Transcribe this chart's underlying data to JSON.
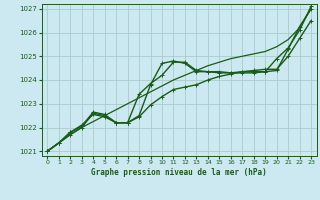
{
  "bg_color": "#cce8f0",
  "grid_color": "#aacccc",
  "line_color": "#1a5c1a",
  "xlabel": "Graphe pression niveau de la mer (hPa)",
  "xlim": [
    -0.5,
    23.5
  ],
  "ylim": [
    1020.8,
    1027.2
  ],
  "yticks": [
    1021,
    1022,
    1023,
    1024,
    1025,
    1026,
    1027
  ],
  "xticks": [
    0,
    1,
    2,
    3,
    4,
    5,
    6,
    7,
    8,
    9,
    10,
    11,
    12,
    13,
    14,
    15,
    16,
    17,
    18,
    19,
    20,
    21,
    22,
    23
  ],
  "series": [
    {
      "x": [
        0,
        1,
        2,
        3,
        4,
        5,
        6,
        7,
        8,
        9,
        10,
        11,
        12,
        13,
        14,
        15,
        16,
        17,
        18,
        19,
        20,
        21,
        22,
        23
      ],
      "y": [
        1021.0,
        1021.35,
        1021.7,
        1022.0,
        1022.25,
        1022.5,
        1022.75,
        1023.0,
        1023.25,
        1023.5,
        1023.75,
        1024.0,
        1024.2,
        1024.4,
        1024.6,
        1024.75,
        1024.9,
        1025.0,
        1025.1,
        1025.2,
        1025.4,
        1025.7,
        1026.2,
        1027.0
      ],
      "marker": null,
      "lw": 0.9
    },
    {
      "x": [
        0,
        1,
        2,
        3,
        4,
        5,
        6,
        7,
        8,
        9,
        10,
        11,
        12,
        13,
        14,
        15,
        16,
        17,
        18,
        19,
        20,
        21,
        22,
        23
      ],
      "y": [
        1021.0,
        1021.35,
        1021.8,
        1022.1,
        1022.55,
        1022.45,
        1022.2,
        1022.2,
        1022.45,
        1022.95,
        1023.3,
        1023.6,
        1023.7,
        1023.8,
        1024.0,
        1024.15,
        1024.25,
        1024.35,
        1024.4,
        1024.45,
        1024.45,
        1025.0,
        1025.75,
        1026.5
      ],
      "marker": "+",
      "lw": 1.0
    },
    {
      "x": [
        0,
        1,
        2,
        3,
        4,
        5,
        6,
        7,
        8,
        9,
        10,
        11,
        12,
        13,
        14,
        15,
        16,
        17,
        18,
        19,
        20,
        21,
        22,
        23
      ],
      "y": [
        1021.0,
        1021.35,
        1021.7,
        1022.0,
        1022.6,
        1022.5,
        1022.2,
        1022.2,
        1022.5,
        1023.8,
        1024.7,
        1024.8,
        1024.7,
        1024.35,
        1024.35,
        1024.3,
        1024.3,
        1024.3,
        1024.3,
        1024.35,
        1024.9,
        1025.35,
        1026.1,
        1027.1
      ],
      "marker": "+",
      "lw": 1.0
    },
    {
      "x": [
        0,
        1,
        2,
        3,
        4,
        5,
        6,
        7,
        8,
        9,
        10,
        11,
        12,
        13,
        14,
        15,
        16,
        17,
        18,
        19,
        20,
        21,
        22,
        23
      ],
      "y": [
        1021.0,
        1021.35,
        1021.8,
        1022.05,
        1022.65,
        1022.55,
        1022.2,
        1022.2,
        1023.4,
        1023.85,
        1024.2,
        1024.75,
        1024.75,
        1024.4,
        1024.35,
        1024.35,
        1024.3,
        1024.35,
        1024.35,
        1024.35,
        1024.4,
        1025.3,
        1026.25,
        1027.0
      ],
      "marker": "+",
      "lw": 1.0
    }
  ]
}
